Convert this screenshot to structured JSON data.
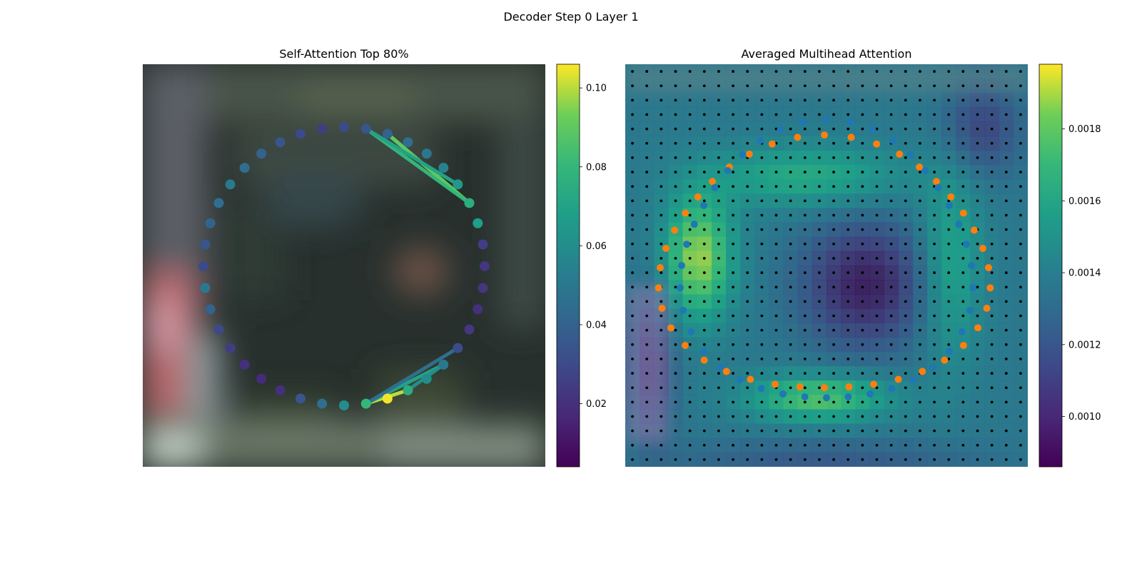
{
  "figure": {
    "title": "Decoder Step 0 Layer 1"
  },
  "chart_data": [
    {
      "type": "scatter",
      "title": "Self-Attention Top 80%",
      "colormap": "viridis",
      "colorbar": {
        "range": [
          0.004,
          0.106
        ],
        "ticks": [
          0.02,
          0.04,
          0.06,
          0.08,
          0.1
        ],
        "tick_labels": [
          "0.02",
          "0.04",
          "0.06",
          "0.08",
          "0.10"
        ]
      },
      "axes_visible": false,
      "background": "blurred photo, dark scene",
      "points": {
        "description": "40 contour points on a circle, colored by self-attention weight",
        "values": [
          0.03,
          0.035,
          0.04,
          0.045,
          0.05,
          0.045,
          0.04,
          0.035,
          0.03,
          0.025,
          0.03,
          0.035,
          0.04,
          0.045,
          0.05,
          0.055,
          0.065,
          0.075,
          0.068,
          0.025,
          0.022,
          0.022,
          0.02,
          0.022,
          0.03,
          0.05,
          0.06,
          0.075,
          0.105,
          0.08,
          0.06,
          0.045,
          0.035,
          0.02,
          0.018,
          0.02,
          0.025,
          0.03,
          0.04,
          0.05
        ]
      },
      "edges": [
        {
          "from": 12,
          "to": 17,
          "value": 0.095
        },
        {
          "from": 12,
          "to": 17,
          "value": 0.09
        },
        {
          "from": 11,
          "to": 17,
          "value": 0.08
        },
        {
          "from": 16,
          "to": 11,
          "value": 0.07
        },
        {
          "from": 29,
          "to": 27,
          "value": 0.1
        },
        {
          "from": 29,
          "to": 25,
          "value": 0.07
        },
        {
          "from": 29,
          "to": 24,
          "value": 0.045
        },
        {
          "from": 27,
          "to": 25,
          "value": 0.06
        }
      ]
    },
    {
      "type": "heatmap",
      "title": "Averaged Multihead Attention",
      "colormap": "viridis",
      "colorbar": {
        "range": [
          0.00086,
          0.00198
        ],
        "ticks": [
          0.001,
          0.0012,
          0.0014,
          0.0016,
          0.0018
        ],
        "tick_labels": [
          "0.0010",
          "0.0012",
          "0.0014",
          "0.0016",
          "0.0018"
        ]
      },
      "grid_size": [
        28,
        28
      ],
      "axes_visible": false,
      "overlays": [
        {
          "name": "grid points",
          "color": "#000000",
          "marker": "dot"
        },
        {
          "name": "contour A",
          "color": "#1f77b4",
          "points": 40
        },
        {
          "name": "contour B",
          "color": "#ff7f0e",
          "points": 40
        }
      ],
      "hot_regions": [
        {
          "region": "left",
          "level": "high"
        },
        {
          "region": "bottom-center",
          "level": "high"
        },
        {
          "region": "center",
          "level": "low"
        }
      ]
    }
  ]
}
